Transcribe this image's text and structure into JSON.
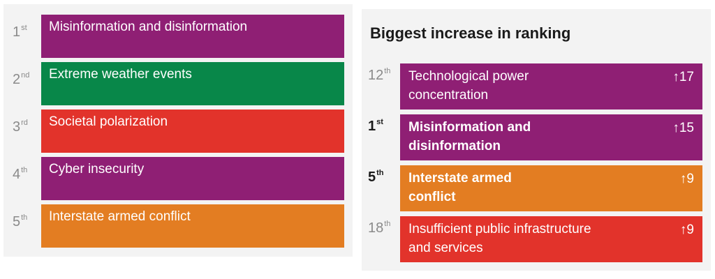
{
  "colors": {
    "purple": "#8f1f74",
    "green": "#088749",
    "red": "#e2332b",
    "orange": "#e37d22"
  },
  "chart_data": [
    {
      "type": "table",
      "title": "",
      "rows": [
        {
          "rank": "1",
          "suffix": "st",
          "label": "Misinformation and disinformation",
          "color": "#8f1f74"
        },
        {
          "rank": "2",
          "suffix": "nd",
          "label": "Extreme weather events",
          "color": "#088749"
        },
        {
          "rank": "3",
          "suffix": "rd",
          "label": "Societal polarization",
          "color": "#e2332b"
        },
        {
          "rank": "4",
          "suffix": "th",
          "label": "Cyber insecurity",
          "color": "#8f1f74"
        },
        {
          "rank": "5",
          "suffix": "th",
          "label": "Interstate armed conflict",
          "color": "#e37d22"
        }
      ]
    },
    {
      "type": "table",
      "title": "Biggest increase in ranking",
      "rows": [
        {
          "rank": "12",
          "suffix": "th",
          "line1": "Technological power",
          "line2": "concentration",
          "change": "↑17",
          "color": "#8f1f74",
          "bold": false
        },
        {
          "rank": "1",
          "suffix": "st",
          "line1": "Misinformation and",
          "line2": "disinformation",
          "change": "↑15",
          "color": "#8f1f74",
          "bold": true
        },
        {
          "rank": "5",
          "suffix": "th",
          "line1": "Interstate armed",
          "line2": "conflict",
          "change": "↑9",
          "color": "#e37d22",
          "bold": true
        },
        {
          "rank": "18",
          "suffix": "th",
          "line1": "Insufficient public infrastructure",
          "line2": "and services",
          "change": "↑9",
          "color": "#e2332b",
          "bold": false
        }
      ]
    }
  ]
}
